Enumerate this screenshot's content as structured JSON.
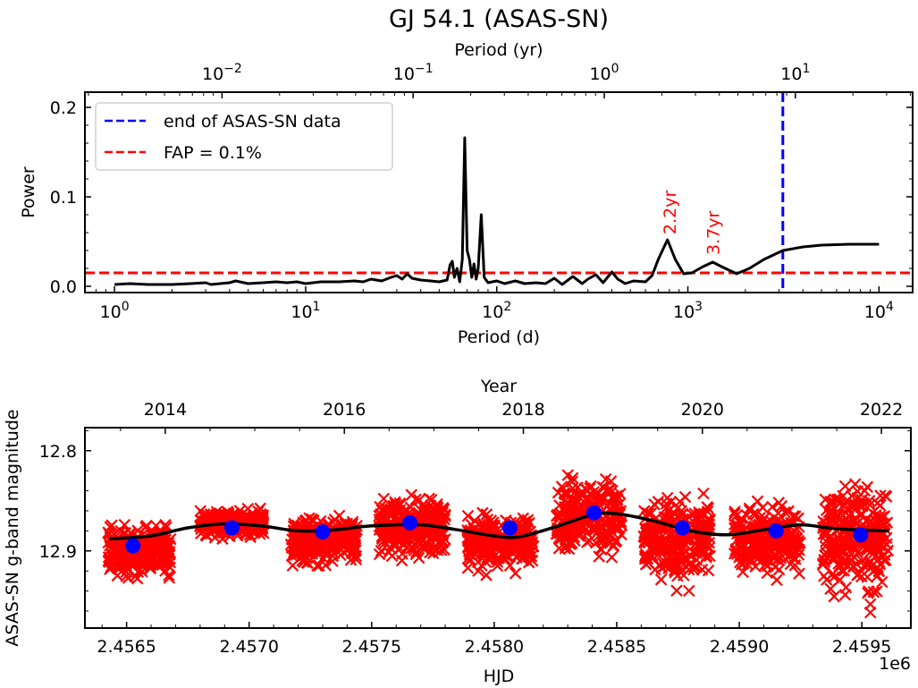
{
  "chart_data": [
    {
      "type": "line",
      "panel": "periodogram",
      "title": "GJ 54.1 (ASAS-SN)",
      "xlabel": "Period (d)",
      "xlabel_top": "Period (yr)",
      "ylabel": "Power",
      "xscale": "log",
      "xlim": [
        0.7,
        15000
      ],
      "ylim": [
        -0.007,
        0.217
      ],
      "xticks": [
        1,
        10,
        100,
        1000,
        10000
      ],
      "xtick_labels": [
        "10^0",
        "10^1",
        "10^2",
        "10^3",
        "10^4"
      ],
      "xticks_top_yr": [
        0.01,
        0.1,
        1,
        10
      ],
      "xtick_labels_top": [
        "10^-2",
        "10^-1",
        "10^0",
        "10^1"
      ],
      "yticks": [
        0.0,
        0.1,
        0.2
      ],
      "ytick_labels": [
        "0.0",
        "0.1",
        "0.2"
      ],
      "series": [
        {
          "name": "periodogram",
          "color": "#000000",
          "points": [
            [
              1.0,
              0.002
            ],
            [
              1.2,
              0.003
            ],
            [
              1.5,
              0.002
            ],
            [
              2.0,
              0.002
            ],
            [
              2.5,
              0.003
            ],
            [
              3.0,
              0.004
            ],
            [
              3.2,
              0.002
            ],
            [
              4.0,
              0.004
            ],
            [
              4.3,
              0.006
            ],
            [
              5.0,
              0.003
            ],
            [
              6.0,
              0.004
            ],
            [
              7.0,
              0.005
            ],
            [
              8.0,
              0.004
            ],
            [
              9.0,
              0.005
            ],
            [
              10.0,
              0.003
            ],
            [
              12.0,
              0.005
            ],
            [
              15.0,
              0.005
            ],
            [
              18.0,
              0.006
            ],
            [
              20.0,
              0.005
            ],
            [
              22.0,
              0.008
            ],
            [
              25.0,
              0.006
            ],
            [
              28.0,
              0.01
            ],
            [
              30.0,
              0.012
            ],
            [
              32.0,
              0.008
            ],
            [
              34.0,
              0.014
            ],
            [
              36.0,
              0.009
            ],
            [
              40.0,
              0.007
            ],
            [
              45.0,
              0.006
            ],
            [
              50.0,
              0.005
            ],
            [
              55.0,
              0.007
            ],
            [
              57.0,
              0.024
            ],
            [
              58.5,
              0.028
            ],
            [
              60.0,
              0.01
            ],
            [
              62.0,
              0.02
            ],
            [
              64.0,
              0.005
            ],
            [
              66.0,
              0.03
            ],
            [
              68.0,
              0.166
            ],
            [
              70.0,
              0.04
            ],
            [
              72.0,
              0.03
            ],
            [
              74.0,
              0.01
            ],
            [
              76.0,
              0.025
            ],
            [
              78.0,
              0.008
            ],
            [
              80.0,
              0.02
            ],
            [
              83.0,
              0.08
            ],
            [
              86.0,
              0.01
            ],
            [
              90.0,
              0.004
            ],
            [
              100.0,
              0.006
            ],
            [
              110.0,
              0.003
            ],
            [
              125.0,
              0.006
            ],
            [
              140.0,
              0.003
            ],
            [
              160.0,
              0.004
            ],
            [
              180.0,
              0.003
            ],
            [
              200.0,
              0.009
            ],
            [
              220.0,
              0.002
            ],
            [
              250.0,
              0.011
            ],
            [
              280.0,
              0.003
            ],
            [
              300.0,
              0.008
            ],
            [
              330.0,
              0.013
            ],
            [
              360.0,
              0.004
            ],
            [
              400.0,
              0.016
            ],
            [
              430.0,
              0.008
            ],
            [
              470.0,
              0.003
            ],
            [
              520.0,
              0.006
            ],
            [
              600.0,
              0.005
            ],
            [
              650.0,
              0.012
            ],
            [
              700.0,
              0.03
            ],
            [
              782.0,
              0.052
            ],
            [
              860.0,
              0.03
            ],
            [
              950.0,
              0.014
            ],
            [
              1050.0,
              0.015
            ],
            [
              1200.0,
              0.022
            ],
            [
              1350.0,
              0.027
            ],
            [
              1500.0,
              0.022
            ],
            [
              1800.0,
              0.014
            ],
            [
              2100.0,
              0.02
            ],
            [
              2500.0,
              0.03
            ],
            [
              3000.0,
              0.038
            ],
            [
              3140.0,
              0.04
            ],
            [
              4000.0,
              0.044
            ],
            [
              5000.0,
              0.046
            ],
            [
              7000.0,
              0.047
            ],
            [
              10000.0,
              0.047
            ]
          ]
        }
      ],
      "reference_lines": [
        {
          "name": "end of ASAS-SN data",
          "orientation": "vertical",
          "x": 3140,
          "color": "#0000ff",
          "style": "dashed"
        },
        {
          "name": "FAP = 0.1%",
          "orientation": "horizontal",
          "y": 0.015,
          "color": "#ff0000",
          "style": "dashed"
        }
      ],
      "legend": {
        "position": "top-left",
        "entries": [
          {
            "label": "end of ASAS-SN data",
            "color": "#0000ff",
            "style": "dashed"
          },
          {
            "label": "FAP = 0.1%",
            "color": "#ff0000",
            "style": "dashed"
          }
        ]
      },
      "annotations": [
        {
          "text": "2.2yr",
          "x": 803,
          "y": 0.058,
          "rotation": 90,
          "color": "#ff0000"
        },
        {
          "text": "3.7yr",
          "x": 1351,
          "y": 0.035,
          "rotation": 90,
          "color": "#ff0000"
        }
      ]
    },
    {
      "type": "scatter",
      "panel": "light-curve",
      "xlabel": "HJD",
      "xlabel_offset": "1e6",
      "xlabel_top": "Year",
      "ylabel": "ASAS-SN g-band magnitude",
      "xlim": [
        2456330,
        2459700
      ],
      "ylim_inverted": [
        12.977,
        12.777
      ],
      "xticks": [
        2456500,
        2457000,
        2457500,
        2458000,
        2458500,
        2459000,
        2459500
      ],
      "xtick_labels": [
        "2.4565",
        "2.4570",
        "2.4575",
        "2.4580",
        "2.4585",
        "2.4590",
        "2.4595"
      ],
      "xticks_top_year": [
        2014,
        2016,
        2018,
        2020,
        2022
      ],
      "yticks": [
        12.8,
        12.9
      ],
      "ytick_labels": [
        "12.8",
        "12.9"
      ],
      "seasons": [
        {
          "start": 2456425,
          "end": 2456680,
          "mag_min": 12.866,
          "mag_max": 12.935
        },
        {
          "start": 2456800,
          "end": 2457060,
          "mag_min": 12.855,
          "mag_max": 12.89
        },
        {
          "start": 2457170,
          "end": 2457440,
          "mag_min": 12.858,
          "mag_max": 12.92
        },
        {
          "start": 2457530,
          "end": 2457800,
          "mag_min": 12.835,
          "mag_max": 12.92
        },
        {
          "start": 2457890,
          "end": 2458160,
          "mag_min": 12.858,
          "mag_max": 12.925
        },
        {
          "start": 2458250,
          "end": 2458520,
          "mag_min": 12.818,
          "mag_max": 12.915
        },
        {
          "start": 2458610,
          "end": 2458880,
          "mag_min": 12.833,
          "mag_max": 12.943
        },
        {
          "start": 2458980,
          "end": 2459250,
          "mag_min": 12.845,
          "mag_max": 12.933
        },
        {
          "start": 2459340,
          "end": 2459610,
          "mag_min": 12.813,
          "mag_max": 12.965
        }
      ],
      "series": [
        {
          "name": "photometry",
          "marker": "x",
          "color": "#ff0000"
        },
        {
          "name": "seasonal means",
          "marker": "o",
          "color": "#0000ff",
          "points": [
            [
              2456526,
              12.895
            ],
            [
              2456930,
              12.877
            ],
            [
              2457300,
              12.881
            ],
            [
              2457656,
              12.872
            ],
            [
              2458064,
              12.877
            ],
            [
              2458407,
              12.862
            ],
            [
              2458768,
              12.877
            ],
            [
              2459150,
              12.88
            ],
            [
              2459495,
              12.884
            ]
          ]
        },
        {
          "name": "sinusoidal fit",
          "color": "#000000",
          "points": [
            [
              2456430,
              12.888
            ],
            [
              2456600,
              12.885
            ],
            [
              2456750,
              12.877
            ],
            [
              2456900,
              12.873
            ],
            [
              2457050,
              12.875
            ],
            [
              2457200,
              12.88
            ],
            [
              2457350,
              12.879
            ],
            [
              2457500,
              12.875
            ],
            [
              2457700,
              12.874
            ],
            [
              2457850,
              12.879
            ],
            [
              2458000,
              12.885
            ],
            [
              2458100,
              12.886
            ],
            [
              2458250,
              12.876
            ],
            [
              2458400,
              12.864
            ],
            [
              2458500,
              12.863
            ],
            [
              2458650,
              12.87
            ],
            [
              2458800,
              12.88
            ],
            [
              2458950,
              12.884
            ],
            [
              2459100,
              12.879
            ],
            [
              2459250,
              12.874
            ],
            [
              2459400,
              12.878
            ],
            [
              2459610,
              12.88
            ]
          ]
        }
      ]
    }
  ]
}
